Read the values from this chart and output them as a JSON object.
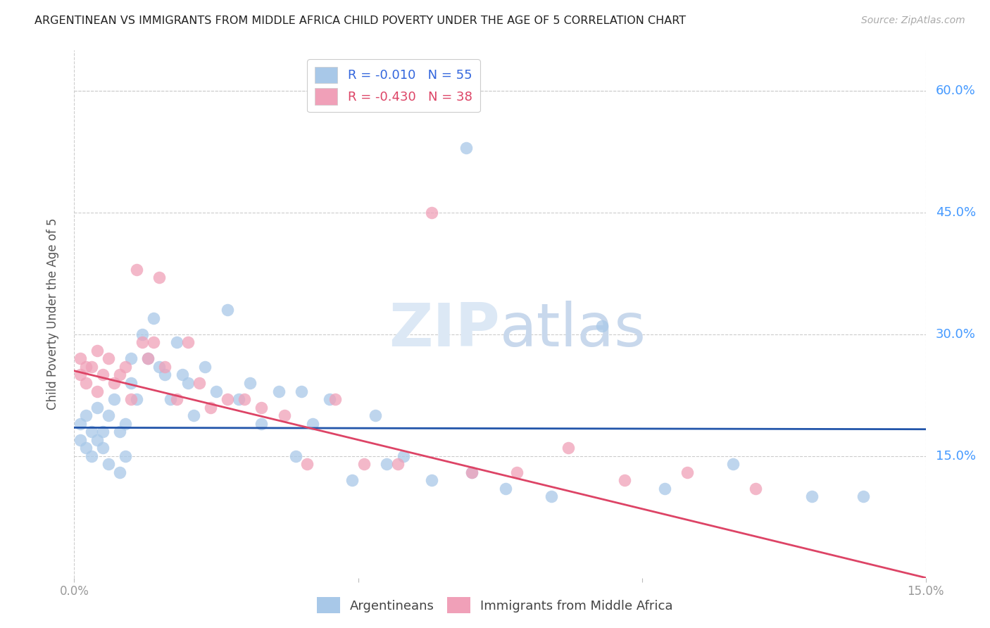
{
  "title": "ARGENTINEAN VS IMMIGRANTS FROM MIDDLE AFRICA CHILD POVERTY UNDER THE AGE OF 5 CORRELATION CHART",
  "source": "Source: ZipAtlas.com",
  "ylabel": "Child Poverty Under the Age of 5",
  "yticks": [
    0.0,
    0.15,
    0.3,
    0.45,
    0.6
  ],
  "ytick_labels": [
    "",
    "15.0%",
    "30.0%",
    "45.0%",
    "60.0%"
  ],
  "xlim": [
    0.0,
    0.15
  ],
  "ylim": [
    0.0,
    0.65
  ],
  "argentina_scatter_color": "#a8c8e8",
  "midafrica_scatter_color": "#f0a0b8",
  "argentina_line_color": "#2255aa",
  "midafrica_line_color": "#dd4466",
  "watermark_color": "#dce8f5",
  "arg_line_y0": 0.185,
  "arg_line_y1": 0.183,
  "mid_line_y0": 0.255,
  "mid_line_y1": 0.0,
  "argentina_x": [
    0.001,
    0.001,
    0.002,
    0.002,
    0.003,
    0.003,
    0.004,
    0.004,
    0.005,
    0.005,
    0.006,
    0.006,
    0.007,
    0.008,
    0.008,
    0.009,
    0.009,
    0.01,
    0.01,
    0.011,
    0.012,
    0.013,
    0.014,
    0.015,
    0.016,
    0.017,
    0.018,
    0.019,
    0.02,
    0.021,
    0.023,
    0.025,
    0.027,
    0.029,
    0.031,
    0.033,
    0.036,
    0.039,
    0.042,
    0.045,
    0.049,
    0.053,
    0.058,
    0.063,
    0.069,
    0.076,
    0.084,
    0.093,
    0.104,
    0.116,
    0.13,
    0.04,
    0.055,
    0.07,
    0.139
  ],
  "argentina_y": [
    0.19,
    0.17,
    0.2,
    0.16,
    0.18,
    0.15,
    0.21,
    0.17,
    0.18,
    0.16,
    0.2,
    0.14,
    0.22,
    0.18,
    0.13,
    0.19,
    0.15,
    0.24,
    0.27,
    0.22,
    0.3,
    0.27,
    0.32,
    0.26,
    0.25,
    0.22,
    0.29,
    0.25,
    0.24,
    0.2,
    0.26,
    0.23,
    0.33,
    0.22,
    0.24,
    0.19,
    0.23,
    0.15,
    0.19,
    0.22,
    0.12,
    0.2,
    0.15,
    0.12,
    0.53,
    0.11,
    0.1,
    0.31,
    0.11,
    0.14,
    0.1,
    0.23,
    0.14,
    0.13,
    0.1
  ],
  "midafrica_x": [
    0.001,
    0.001,
    0.002,
    0.002,
    0.003,
    0.004,
    0.004,
    0.005,
    0.006,
    0.007,
    0.008,
    0.009,
    0.01,
    0.011,
    0.012,
    0.013,
    0.014,
    0.015,
    0.016,
    0.018,
    0.02,
    0.022,
    0.024,
    0.027,
    0.03,
    0.033,
    0.037,
    0.041,
    0.046,
    0.051,
    0.057,
    0.063,
    0.07,
    0.078,
    0.087,
    0.097,
    0.108,
    0.12
  ],
  "midafrica_y": [
    0.27,
    0.25,
    0.26,
    0.24,
    0.26,
    0.28,
    0.23,
    0.25,
    0.27,
    0.24,
    0.25,
    0.26,
    0.22,
    0.38,
    0.29,
    0.27,
    0.29,
    0.37,
    0.26,
    0.22,
    0.29,
    0.24,
    0.21,
    0.22,
    0.22,
    0.21,
    0.2,
    0.14,
    0.22,
    0.14,
    0.14,
    0.45,
    0.13,
    0.13,
    0.16,
    0.12,
    0.13,
    0.11
  ]
}
